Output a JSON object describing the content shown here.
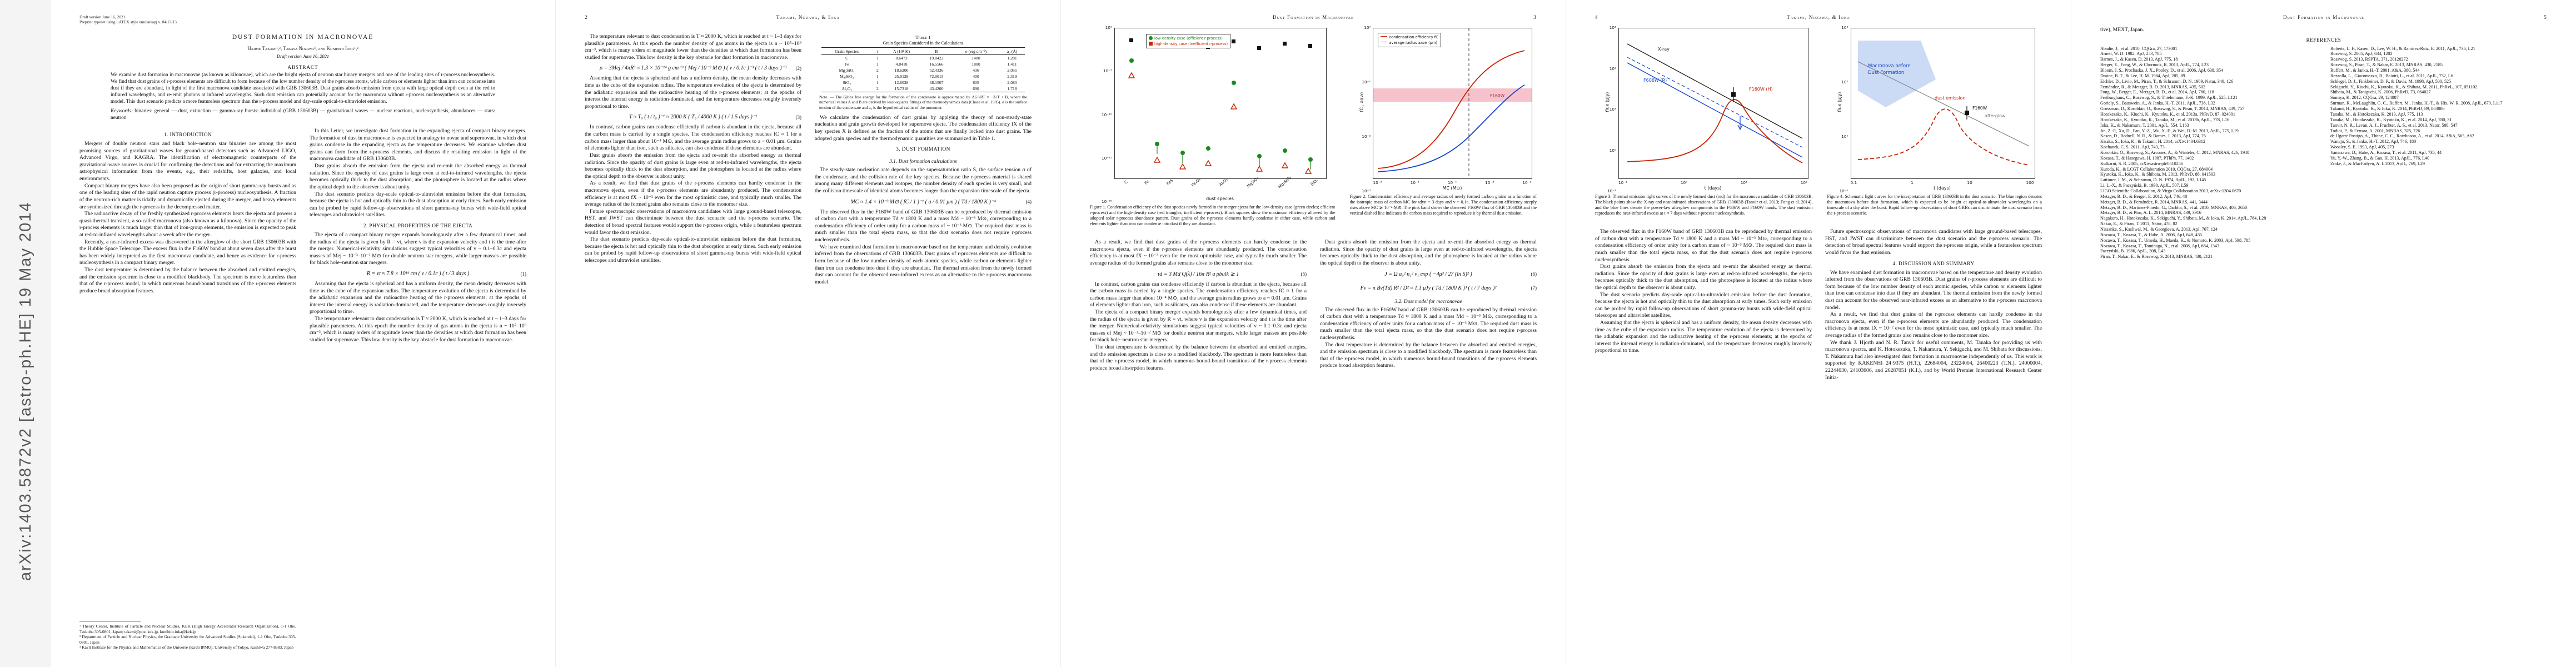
{
  "banner": {
    "text": "arXiv:1403.5872v2  [astro-ph.HE]  19 May 2014"
  },
  "meta": {
    "draft_line": "Draft version June 16, 2021",
    "preprint_line": "Preprint typeset using LATEX style emulateapj v. 04/17/13"
  },
  "running": {
    "title": "Dust Formation in Macronovae",
    "authors": "Takami, Nozawa, & Ioka",
    "p2": "2",
    "p3": "3",
    "p4": "4",
    "p5": "5"
  },
  "title_block": {
    "title": "DUST FORMATION IN MACRONOVAE",
    "authors": "Hajime Takami¹,², Takaya Nozawa³, and Kunihito Ioka¹,²",
    "date_line": "Draft version June 16, 2021",
    "abstract_label": "ABSTRACT",
    "abstract": "We examine dust formation in macronovae (as known as kilonovae), which are the bright ejecta of neutron star binary mergers and one of the leading sites of r-process nucleosynthesis. We find that dust grains of r-process elements are difficult to form because of the low number density of the r-process atoms, while carbon or elements lighter than iron can condense into dust if they are abundant, in light of the first macronova candidate associated with GRB 130603B. Dust grains absorb emission from ejecta with large optical depth even at the red to infrared wavelengths, and re-emit photons at infrared wavelengths. Such dust emission can potentially account for the macronova without r-process nucleosynthesis as an alternative model. This dust scenario predicts a more featureless spectrum than the r-process model and day-scale optical-to-ultraviolet emission.",
    "keywords_lead": "Keywords:",
    "keywords": "binaries: general — dust, extinction — gamma-ray bursts: individual (GRB 130603B) — gravitational waves — nuclear reactions, nucleosynthesis, abundances — stars: neutron"
  },
  "sections": {
    "s1": "1. INTRODUCTION",
    "s2": "2. PHYSICAL PROPERTIES OF THE EJECTA",
    "s3": "3. DUST FORMATION",
    "s31": "3.1. Dust formation calculations",
    "s32": "3.2. Dust model for macronovae",
    "s4": "4. DISCUSSION AND SUMMARY",
    "refs": "REFERENCES"
  },
  "fill": {
    "i1": "Mergers of double neutron stars and black hole–neutron star binaries are among the most promising sources of gravitational waves for ground-based detectors such as Advanced LIGO, Advanced Virgo, and KAGRA. The identification of electromagnetic counterparts of the gravitational-wave sources is crucial for confirming the detections and for extracting the maximum astrophysical information from the events, e.g., their redshifts, host galaxies, and local environments.",
    "i2": "Compact binary mergers have also been proposed as the origin of short gamma-ray bursts and as one of the leading sites of the rapid neutron capture process (r-process) nucleosynthesis. A fraction of the neutron-rich matter is tidally and dynamically ejected during the merger, and heavy elements are synthesized through the r-process in the decompressed matter.",
    "i3": "The radioactive decay of the freshly synthesized r-process elements heats the ejecta and powers a quasi-thermal transient, a so-called macronova (also known as a kilonova). Since the opacity of the r-process elements is much larger than that of iron-group elements, the emission is expected to peak at red-to-infrared wavelengths about a week after the merger.",
    "i4": "Recently, a near-infrared excess was discovered in the afterglow of the short GRB 130603B with the Hubble Space Telescope. The excess flux in the F160W band at about seven days after the burst has been widely interpreted as the first macronova candidate, and hence as evidence for r-process nucleosynthesis in a compact binary merger.",
    "i5": "In this Letter, we investigate dust formation in the expanding ejecta of compact binary mergers. The formation of dust in macronovae is expected in analogy to novae and supernovae, in which dust grains condense in the expanding ejecta as the temperature decreases. We examine whether dust grains can form from the r-process elements, and discuss the resulting emission in light of the macronova candidate of GRB 130603B.",
    "ej1": "The ejecta of a compact binary merger expands homologously after a few dynamical times, and the radius of the ejecta is given by R = vt, where v is the expansion velocity and t is the time after the merger. Numerical-relativity simulations suggest typical velocities of v ~ 0.1–0.3c and ejecta masses of Mej ~ 10⁻³–10⁻² M⊙ for double neutron star mergers, while larger masses are possible for black hole–neutron star mergers.",
    "ej2": "Assuming that the ejecta is spherical and has a uniform density, the mean density decreases with time as the cube of the expansion radius. The temperature evolution of the ejecta is determined by the adiabatic expansion and the radioactive heating of the r-process elements; at the epochs of interest the internal energy is radiation-dominated, and the temperature decreases roughly inversely proportional to time.",
    "ej3": "The temperature relevant to dust condensation is T ≈ 2000 K, which is reached at t ~ 1–3 days for plausible parameters. At this epoch the number density of gas atoms in the ejecta is n ~ 10⁷–10⁹ cm⁻³, which is many orders of magnitude lower than the densities at which dust formation has been studied for supernovae. This low density is the key obstacle for dust formation in macronovae.",
    "d1": "We calculate the condensation of dust grains by applying the theory of non-steady-state nucleation and grain growth developed for supernova ejecta. The condensation efficiency fX of the key species X is defined as the fraction of the atoms that are finally locked into dust grains. The adopted grain species and the thermodynamic quantities are summarized in Table 1.",
    "d2": "The steady-state nucleation rate depends on the supersaturation ratio S, the surface tension σ of the condensate, and the collision rate of the key species. Because the r-process material is shared among many different elements and isotopes, the number density of each species is very small, and the collision timescale of identical atoms becomes longer than the expansion timescale of the ejecta.",
    "d3": "As a result, we find that dust grains of the r-process elements can hardly condense in the macronova ejecta, even if the r-process elements are abundantly produced. The condensation efficiency is at most fX ~ 10⁻² even for the most optimistic case, and typically much smaller. The average radius of the formed grains also remains close to the monomer size.",
    "d4": "In contrast, carbon grains can condense efficiently if carbon is abundant in the ejecta, because all the carbon mass is carried by a single species. The condensation efficiency reaches fC ≈ 1 for a carbon mass larger than about 10⁻⁴ M⊙, and the average grain radius grows to a ~ 0.01 μm. Grains of elements lighter than iron, such as silicates, can also condense if these elements are abundant.",
    "m1": "Dust grains absorb the emission from the ejecta and re-emit the absorbed energy as thermal radiation. Since the opacity of dust grains is large even at red-to-infrared wavelengths, the ejecta becomes optically thick to the dust absorption, and the photosphere is located at the radius where the optical depth to the observer is about unity.",
    "m2": "The observed flux in the F160W band of GRB 130603B can be reproduced by thermal emission of carbon dust with a temperature Td ≈ 1800 K and a mass Md ~ 10⁻³ M⊙, corresponding to a condensation efficiency of order unity for a carbon mass of ~ 10⁻³ M⊙. The required dust mass is much smaller than the total ejecta mass, so that the dust scenario does not require r-process nucleosynthesis.",
    "m3": "The dust temperature is determined by the balance between the absorbed and emitted energies, and the emission spectrum is close to a modified blackbody. The spectrum is more featureless than that of the r-process model, in which numerous bound-bound transitions of the r-process elements produce broad absorption features.",
    "s1": "The dust scenario predicts day-scale optical-to-ultraviolet emission before the dust formation, because the ejecta is hot and optically thin to the dust absorption at early times. Such early emission can be probed by rapid follow-up observations of short gamma-ray bursts with wide-field optical telescopes and ultraviolet satellites.",
    "s2": "Future spectroscopic observations of macronova candidates with large ground-based telescopes, HST, and JWST can discriminate between the dust scenario and the r-process scenario. The detection of broad spectral features would support the r-process origin, while a featureless spectrum would favor the dust emission.",
    "s3": "We have examined dust formation in macronovae based on the temperature and density evolution inferred from the observations of GRB 130603B. Dust grains of r-process elements are difficult to form because of the low number density of each atomic species, while carbon or elements lighter than iron can condense into dust if they are abundant. The thermal emission from the newly formed dust can account for the observed near-infrared excess as an alternative to the r-process macronova model."
  },
  "equations": {
    "e1": {
      "body": "R = vt ≈ 7.8 × 10¹⁴ cm ( v / 0.1c ) ( t / 3 days )",
      "num": "(1)"
    },
    "e2": {
      "body": "ρ = 3Mej / 4πR³ ≈ 1.3 × 10⁻¹⁴ g cm⁻³ ( Mej / 10⁻² M⊙ ) ( v / 0.1c )⁻³ ( t / 3 days )⁻³",
      "num": "(2)"
    },
    "e3": {
      "body": "T ≈ T₀ ( t / t₀ )⁻¹ ≈ 2000 K ( T₀ / 4000 K ) ( t / 1.5 days )⁻¹",
      "num": "(3)"
    },
    "e4": {
      "body": "MC ≈ 1.4 × 10⁻³ M⊙ ( fC / 1 )⁻¹ ( a / 0.01 μm ) ( Td / 1800 K )⁻⁴",
      "num": "(4)"
    },
    "e5": {
      "body": "τd = 3 Md Q(λ) / 16π R² a ρbulk ≳ 1",
      "num": "(5)"
    },
    "e6": {
      "body": "J = Ω a₀² n₁² v₁ exp ( −4μ³ / 27 (ln S)² )",
      "num": "(6)"
    },
    "e7": {
      "body": "Fν = π Bν(Td) R² / D² ≈ 1.1 μJy ( Td / 1800 K )³ ( t / 7 days )²",
      "num": "(7)"
    }
  },
  "affiliations": [
    "¹ Theory Center, Institute of Particle and Nuclear Studies, KEK (High Energy Accelerator Research Organization), 1-1 Oho, Tsukuba 305-0801, Japan; takami@post.kek.jp, kunihito.ioka@kek.jp",
    "² Department of Particle and Nuclear Physics, the Graduate University for Advanced Studies (Sokendai), 1-1 Oho, Tsukuba 305-0801, Japan",
    "³ Kavli Institute for the Physics and Mathematics of the Universe (Kavli IPMU), University of Tokyo, Kashiwa 277-8583, Japan"
  ],
  "ack": {
    "part1": "We thank J. Hjorth and N. R. Tanvir for useful comments, M. Tanaka for providing us with macronova spectra, and K. Hotokezaka, T. Nakamura, Y. Sekiguchi, and M. Shibata for discussions. T. Nakamura had also investigated dust formation in macronovae independently of us. This work is supported by KAKENHI 24·9375 (H.T.), 22684004, 23224004, 26400223 (T.N.), 24000004, 22244030, 24103006, and 26287051 (K.I.), and by World Premier International Research Center Initia-",
    "part2": "tive), MEXT, Japan."
  },
  "table1": {
    "label": "Table 1",
    "caption": "Grain Species Considered in the Calculations",
    "columns": [
      "Grain Species",
      "i",
      "A (10⁴ K)",
      "B",
      "σ (erg cm⁻²)",
      "a₀ (Å)"
    ],
    "rows": [
      [
        "C",
        "1",
        "8.6473",
        "19.0422",
        "1400",
        "1.281"
      ],
      [
        "Fe",
        "1",
        "4.8418",
        "16.5566",
        "1800",
        "1.411"
      ],
      [
        "Mg₂SiO₄",
        "2",
        "18.6200",
        "52.4336",
        "436",
        "2.055"
      ],
      [
        "MgSiO₃",
        "1",
        "25.0129",
        "72.0015",
        "400",
        "2.319"
      ],
      [
        "SiO₂",
        "1",
        "12.6028",
        "38.1507",
        "605",
        "2.080"
      ],
      [
        "Al₂O₃",
        "2",
        "15.7318",
        "43.4200",
        "690",
        "1.718"
      ]
    ],
    "note": "Note. — The Gibbs free energy for the formation of the condensate is approximated by ΔG°/RT = −A/T + B, where the numerical values A and B are derived by least-squares fittings of the thermodynamics data (Chase et al. 1985). σ is the surface tension of the condensate and a₀ is the hypothetical radius of the monomer."
  },
  "figures": {
    "fig1": {
      "ylabel": "condensation efficiency fX",
      "xlabel": "dust species",
      "yticks": [
        "10⁰",
        "10⁻⁵",
        "10⁻¹⁰",
        "10⁻¹⁵",
        "10⁻²⁰"
      ],
      "species": [
        "C",
        "Fe",
        "FeS",
        "Fe₃O₄",
        "Al₂O₃",
        "MgSiO₃",
        "Mg₂SiO₄",
        "SiO₂"
      ],
      "legend1": "low-density case (efficient r-process)",
      "legend2": "high-density case (inefficient r-process)",
      "caption": "Figure 1. Condensation efficiency of the dust species newly formed in the merger ejecta for the low-density case (green circles; efficient r-process) and the high-density case (red triangles; inefficient r-process). Black squares show the maximum efficiency allowed by the adopted solar r-process abundance pattern. Dust grains of the r-process elements hardly condense in either case, while carbon and elements lighter than iron can condense into dust if they are abundant."
    },
    "fig2": {
      "ylabel": "fC ,  aave",
      "xlabel": "MC (M⊙)",
      "yticks": [
        "10⁰",
        "10⁻¹",
        "10⁻²",
        "10⁻³"
      ],
      "xticks": [
        "10⁻⁶",
        "10⁻⁵",
        "10⁻⁴",
        "10⁻³",
        "10⁻²"
      ],
      "legend1": "condensation efficiency fC",
      "legend2": "average radius aave (μm)",
      "band_label": "F160W",
      "caption": "Figure 2. Condensation efficiency and average radius of newly formed carbon grains as a function of the isotropic mass of carbon MC for tdyn = 3 days and v = 0.1c. The condensation efficiency steeply rises above MC ≳ 10⁻⁴ M⊙. The pink band shows the observed F160W flux of GRB 130603B and the vertical dashed line indicates the carbon mass required to reproduce it by thermal dust emission."
    },
    "fig3": {
      "ylabel": "flux (μJy)",
      "xlabel": "t (days)",
      "yticks": [
        "10³",
        "10²",
        "10¹",
        "10⁰",
        "10⁻¹"
      ],
      "xticks": [
        "10⁻¹",
        "10⁰",
        "10¹",
        "10²"
      ],
      "lab_xray": "X-ray",
      "lab_f606": "F606W (R)",
      "lab_f160": "F160W (H)",
      "caption": "Figure 3. Thermal emission light curves of the newly formed dust (red) for the macronova candidate of GRB 130603B. The black points show the X-ray and near-infrared observations of GRB 130603B (Tanvir et al. 2013; Fong et al. 2014), and the blue lines denote the power-law afterglow components in the F606W and F160W bands. The dust emission reproduces the near-infrared excess at t ≈ 7 days without r-process nucleosynthesis."
    },
    "fig4": {
      "ylabel": "flux (μJy)",
      "xlabel": "t (days)",
      "yticks": [
        "10²",
        "10¹",
        "10⁰",
        "10⁻¹"
      ],
      "xticks": [
        "0.1",
        "1",
        "10",
        "100"
      ],
      "lab_region1": "Macronova before",
      "lab_region2": "Dust Formation",
      "lab_dust": "dust emission",
      "lab_ag": "afterglow",
      "lab_point": "F160W",
      "caption": "Figure 4. Schematic light curves for the interpretation of GRB 130603B in the dust scenario. The blue region denotes the macronova before dust formation, which is expected to be bright at optical-to-ultraviolet wavelengths on a timescale of a day after the burst. Rapid follow-up observations of short GRBs can discriminate the dust scenario from the r-process scenario."
    }
  },
  "references": {
    "col1": [
      "Abadie, J., et al. 2010, CQGra, 27, 173001",
      "Arnett, W. D. 1982, ApJ, 253, 785",
      "Barnes, J., & Kasen, D. 2013, ApJ, 775, 18",
      "Berger, E., Fong, W., & Chornock, R. 2013, ApJL, 774, L23",
      "Bloom, J. S., Prochaska, J. X., Pooley, D., et al. 2006, ApJ, 638, 354",
      "Draine, B. T., & Lee, H. M. 1984, ApJ, 285, 89",
      "Eichler, D., Livio, M., Piran, T., & Schramm, D. N. 1989, Natur, 340, 126",
      "Fernández, R., & Metzger, B. D. 2013, MNRAS, 435, 502",
      "Fong, W., Berger, E., Metzger, B. D., et al. 2014, ApJ, 780, 118",
      "Freiburghaus, C., Rosswog, S., & Thielemann, F.-K. 1999, ApJL, 525, L121",
      "Goriely, S., Bauswein, A., & Janka, H.-T. 2011, ApJL, 738, L32",
      "Grossman, D., Korobkin, O., Rosswog, S., & Piran, T. 2014, MNRAS, 439, 757",
      "Hotokezaka, K., Kiuchi, K., Kyutoku, K., et al. 2013a, PhRvD, 87, 024001",
      "Hotokezaka, K., Kyutoku, K., Tanaka, M., et al. 2013b, ApJL, 778, L16",
      "Ioka, K., & Nakamura, T. 2001, ApJL, 554, L163",
      "Jin, Z.-P., Xu, D., Fan, Y.-Z., Wu, X.-F., & Wei, D.-M. 2013, ApJL, 775, L19",
      "Kasen, D., Badnell, N. R., & Barnes, J. 2013, ApJ, 774, 25",
      "Kisaka, S., Ioka, K., & Takami, H. 2014, arXiv:1404.6312",
      "Kochanek, C. S. 2011, ApJ, 743, 73",
      "Korobkin, O., Rosswog, S., Arcones, A., & Winteler, C. 2012, MNRAS, 426, 1940",
      "Kozasa, T., & Hasegawa, H. 1987, PThPh, 77, 1402",
      "Kulkarni, S. R. 2005, arXiv:astro-ph/0510256",
      "Kuroda, K., & LCGT Collaboration 2010, CQGra, 27, 084004",
      "Kyutoku, K., Ioka, K., & Shibata, M. 2013, PhRvD, 88, 041503",
      "Lattimer, J. M., & Schramm, D. N. 1974, ApJL, 192, L145",
      "Li, L.-X., & Paczyński, B. 1998, ApJL, 507, L59",
      "LIGO Scientific Collaboration, & Virgo Collaboration 2013, arXiv:1304.0670",
      "Metzger, B. D., & Berger, E. 2012, ApJ, 746, 48",
      "Metzger, B. D., & Fernández, R. 2014, MNRAS, 441, 3444",
      "Metzger, B. D., Martínez-Pinedo, G., Darbha, S., et al. 2010, MNRAS, 406, 2650",
      "Metzger, B. D., & Piro, A. L. 2014, MNRAS, 439, 3916",
      "Nagakura, H., Hotokezaka, K., Sekiguchi, Y., Shibata, M., & Ioka, K. 2014, ApJL, 784, L28",
      "Nakar, E., & Piran, T. 2011, Natur, 478, 82",
      "Nissanke, S., Kasliwal, M., & Georgieva, A. 2013, ApJ, 767, 124",
      "Nozawa, T., Kozasa, T., & Habe, A. 2006, ApJ, 648, 435",
      "Nozawa, T., Kozasa, T., Umeda, H., Maeda, K., & Nomoto, K. 2003, ApJ, 598, 785",
      "Nozawa, T., Kozasa, T., Tominaga, N., et al. 2008, ApJ, 684, 1343",
      "Paczyński, B. 1986, ApJL, 308, L43",
      "Piran, T., Nakar, E., & Rosswog, S. 2013, MNRAS, 430, 2121"
    ],
    "col2": [
      "Roberts, L. F., Kasen, D., Lee, W. H., & Ramirez-Ruiz, E. 2011, ApJL, 736, L21",
      "Rosswog, S. 2005, ApJ, 634, 1202",
      "Rosswog, S. 2013, RSPTA, 371, 20120272",
      "Rosswog, S., Piran, T., & Nakar, E. 2013, MNRAS, 430, 2585",
      "Ruffert, M., & Janka, H.-T. 2001, A&A, 380, 544",
      "Rezzolla, L., Giacomazzo, B., Baiotti, L., et al. 2011, ApJL, 732, L6",
      "Schlegel, D. J., Finkbeiner, D. P., & Davis, M. 1998, ApJ, 500, 525",
      "Sekiguchi, Y., Kiuchi, K., Kyutoku, K., & Shibata, M. 2011, PhRvL, 107, 051102",
      "Shibata, M., & Taniguchi, K. 2006, PhRvD, 73, 064027",
      "Somiya, K. 2012, CQGra, 29, 124007",
      "Surman, R., McLaughlin, G. C., Ruffert, M., Janka, H.-T., & Hix, W. R. 2008, ApJL, 679, L117",
      "Takami, H., Kyutoku, K., & Ioka, K. 2014, PhRvD, 89, 063006",
      "Tanaka, M., & Hotokezaka, K. 2013, ApJ, 775, 113",
      "Tanaka, M., Hotokezaka, K., Kyutoku, K., et al. 2014, ApJ, 780, 31",
      "Tanvir, N. R., Levan, A. J., Fruchter, A. S., et al. 2013, Natur, 500, 547",
      "Todini, P., & Ferrara, A. 2001, MNRAS, 325, 726",
      "de Ugarte Postigo, A., Thöne, C. C., Rowlinson, A., et al. 2014, A&A, 563, A62",
      "Wanajo, S., & Janka, H.-T. 2012, ApJ, 746, 180",
      "Woosley, S. E. 1993, ApJ, 405, 273",
      "Yamasawa, D., Habe, A., Kozasa, T., et al. 2011, ApJ, 735, 44",
      "Yu, Y.-W., Zhang, B., & Gao, H. 2013, ApJL, 776, L40",
      "Zrake, J., & MacFadyen, A. I. 2013, ApJL, 769, L29"
    ]
  }
}
